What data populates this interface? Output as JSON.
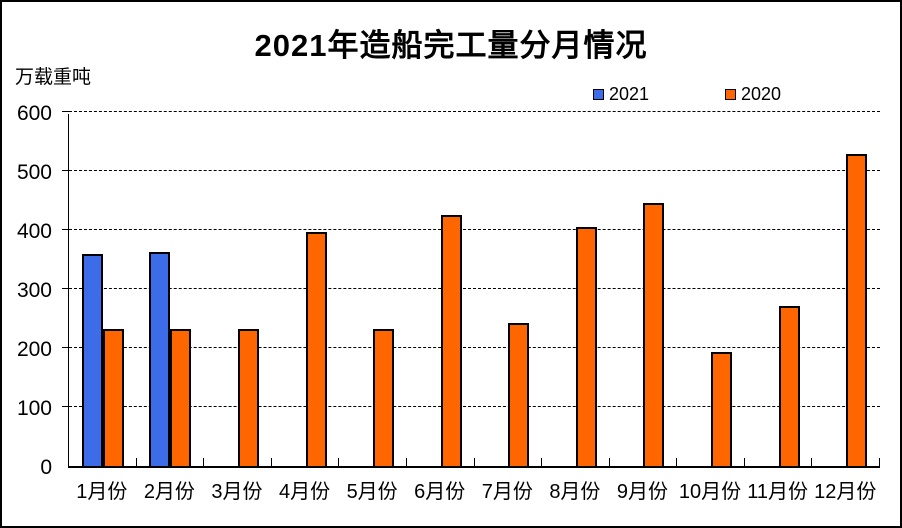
{
  "page": {
    "background": "#ffffff",
    "border_color": "#000000"
  },
  "chart_data": {
    "type": "bar",
    "title": "2021年造船完工量分月情况",
    "ylabel": "万载重吨",
    "xlabel": "",
    "categories": [
      "1月份",
      "2月份",
      "3月份",
      "4月份",
      "5月份",
      "6月份",
      "7月份",
      "8月份",
      "9月份",
      "10月份",
      "11月份",
      "12月份"
    ],
    "series": [
      {
        "name": "2021",
        "color": "#3C6CE8",
        "border_color": "#000000",
        "values": [
          360,
          362,
          null,
          null,
          null,
          null,
          null,
          null,
          null,
          null,
          null,
          null
        ]
      },
      {
        "name": "2020",
        "color": "#FF6600",
        "border_color": "#000000",
        "values": [
          232,
          232,
          232,
          397,
          232,
          425,
          243,
          405,
          445,
          193,
          272,
          528
        ]
      }
    ],
    "ylim": [
      0,
      600
    ],
    "yticks": [
      0,
      100,
      200,
      300,
      400,
      500,
      600
    ],
    "grid": "horizontal-dashed",
    "gridline_color": "#000000",
    "legend_position": "top-right"
  }
}
